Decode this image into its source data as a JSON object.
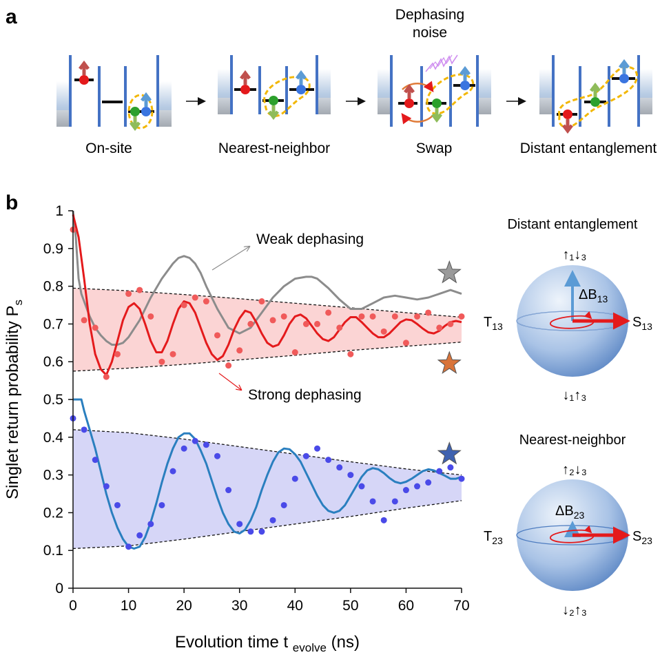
{
  "panel_a": {
    "label": "a",
    "stages": [
      "On-site",
      "Nearest-neighbor",
      "Swap",
      "Distant entanglement"
    ],
    "noise_label_line1": "Dephasing",
    "noise_label_line2": "noise",
    "arrows": [
      "→",
      "→",
      "→"
    ]
  },
  "panel_b": {
    "label": "b",
    "annotations": {
      "weak": "Weak dephasing",
      "strong": "Strong dephasing"
    },
    "spheres": [
      {
        "title": "Distant entanglement",
        "top_label": "↑₁↓₃",
        "bottom_label": "↓₁↑₃",
        "left_label": "T",
        "left_sub": "13",
        "right_label": "S",
        "right_sub": "13",
        "field_label": "ΔB",
        "field_sub": "13",
        "field_strength": "large"
      },
      {
        "title": "Nearest-neighbor",
        "top_label": "↑₂↓₃",
        "bottom_label": "↓₂↑₃",
        "left_label": "T",
        "left_sub": "23",
        "right_label": "S",
        "right_sub": "23",
        "field_label": "ΔB",
        "field_sub": "23",
        "field_strength": "small"
      }
    ]
  },
  "colors": {
    "red": "#e41a1c",
    "red_points": "#f05a5a",
    "red_band": "#fbd4d4",
    "gray": "#8c8c8c",
    "blue_line": "#2a7fbf",
    "blue_points": "#4a4ae8",
    "blue_band": "#d6d6f7",
    "gate": "#4472c4",
    "star_gray": "#9a9a9a",
    "star_orange": "#d9743a",
    "star_blue": "#3f62b0"
  },
  "chart_data": {
    "type": "line",
    "xlabel": "Evolution time t",
    "xlabel_sub": "evolve",
    "xlabel_unit": "(ns)",
    "ylabel": "Singlet return probability P",
    "ylabel_sub": "s",
    "xlim": [
      0,
      70
    ],
    "ylim": [
      0,
      1
    ],
    "xticks": [
      0,
      10,
      20,
      30,
      40,
      50,
      60,
      70
    ],
    "yticks": [
      0,
      0.1,
      0.2,
      0.3,
      0.4,
      0.5,
      0.6,
      0.7,
      0.8,
      0.9,
      1
    ],
    "series": [
      {
        "kind": "line",
        "color_key": "gray",
        "x": [
          0,
          0.5,
          1,
          1.5,
          2,
          3,
          4,
          5,
          6,
          7,
          8,
          9,
          10,
          12,
          14,
          16,
          18,
          19,
          20,
          21,
          22,
          23,
          24,
          26,
          28,
          30,
          32,
          34,
          36,
          38,
          40,
          42,
          43,
          44,
          46,
          48,
          50,
          52,
          54,
          56,
          58,
          60,
          62,
          64,
          66,
          68,
          70
        ],
        "y": [
          1.0,
          0.93,
          0.82,
          0.78,
          0.76,
          0.72,
          0.69,
          0.67,
          0.655,
          0.645,
          0.645,
          0.65,
          0.665,
          0.71,
          0.77,
          0.82,
          0.86,
          0.875,
          0.88,
          0.875,
          0.86,
          0.835,
          0.8,
          0.74,
          0.69,
          0.675,
          0.69,
          0.73,
          0.77,
          0.8,
          0.82,
          0.825,
          0.825,
          0.82,
          0.795,
          0.765,
          0.74,
          0.74,
          0.755,
          0.77,
          0.775,
          0.77,
          0.765,
          0.77,
          0.78,
          0.79,
          0.78
        ]
      },
      {
        "kind": "line",
        "color_key": "red",
        "x": [
          0,
          1,
          2,
          3,
          4,
          5,
          6,
          7,
          8,
          9,
          10,
          11,
          12,
          13,
          14,
          15,
          16,
          17,
          18,
          19,
          20,
          21,
          22,
          23,
          24,
          25,
          26,
          27,
          28,
          29,
          30,
          31,
          32,
          33,
          34,
          35,
          36,
          37,
          38,
          39,
          40,
          41,
          42,
          43,
          44,
          45,
          46,
          47,
          48,
          49,
          50,
          51,
          52,
          53,
          54,
          55,
          56,
          57,
          58,
          59,
          60,
          61,
          62,
          63,
          64,
          65,
          66,
          67,
          68,
          69,
          70
        ],
        "y": [
          0.99,
          0.93,
          0.82,
          0.7,
          0.62,
          0.58,
          0.565,
          0.6,
          0.655,
          0.71,
          0.745,
          0.755,
          0.74,
          0.7,
          0.655,
          0.625,
          0.625,
          0.655,
          0.7,
          0.74,
          0.76,
          0.755,
          0.73,
          0.69,
          0.65,
          0.62,
          0.605,
          0.615,
          0.645,
          0.685,
          0.715,
          0.735,
          0.73,
          0.705,
          0.675,
          0.65,
          0.64,
          0.645,
          0.67,
          0.7,
          0.72,
          0.725,
          0.715,
          0.695,
          0.675,
          0.66,
          0.655,
          0.665,
          0.685,
          0.705,
          0.718,
          0.718,
          0.705,
          0.69,
          0.675,
          0.665,
          0.665,
          0.675,
          0.69,
          0.705,
          0.712,
          0.71,
          0.7,
          0.688,
          0.678,
          0.675,
          0.682,
          0.695,
          0.705,
          0.708,
          0.705
        ]
      },
      {
        "kind": "points",
        "color_key": "red_points",
        "x": [
          0,
          2,
          4,
          6,
          8,
          10,
          12,
          14,
          16,
          18,
          20,
          22,
          24,
          26,
          28,
          30,
          32,
          34,
          36,
          38,
          40,
          42,
          44,
          46,
          48,
          50,
          52,
          54,
          56,
          58,
          60,
          62,
          64,
          66,
          68,
          70
        ],
        "y": [
          0.95,
          0.71,
          0.69,
          0.56,
          0.62,
          0.78,
          0.79,
          0.72,
          0.6,
          0.62,
          0.75,
          0.77,
          0.76,
          0.67,
          0.59,
          0.63,
          0.7,
          0.76,
          0.71,
          0.72,
          0.625,
          0.7,
          0.7,
          0.73,
          0.69,
          0.62,
          0.72,
          0.72,
          0.68,
          0.72,
          0.65,
          0.72,
          0.73,
          0.69,
          0.7,
          0.72
        ]
      },
      {
        "kind": "line",
        "color_key": "blue_line",
        "x": [
          0,
          0.5,
          1,
          1.5,
          2,
          3,
          4,
          5,
          6,
          7,
          8,
          9,
          10,
          11,
          12,
          13,
          14,
          15,
          16,
          17,
          18,
          19,
          20,
          21,
          22,
          23,
          24,
          25,
          26,
          27,
          28,
          29,
          30,
          31,
          32,
          33,
          34,
          35,
          36,
          37,
          38,
          39,
          40,
          41,
          42,
          43,
          44,
          45,
          46,
          47,
          48,
          49,
          50,
          51,
          52,
          53,
          54,
          55,
          56,
          57,
          58,
          59,
          60,
          61,
          62,
          63,
          64,
          65,
          66,
          67,
          68,
          69,
          70
        ],
        "y": [
          0.5,
          0.5,
          0.5,
          0.5,
          0.47,
          0.42,
          0.37,
          0.31,
          0.25,
          0.2,
          0.16,
          0.13,
          0.11,
          0.105,
          0.11,
          0.135,
          0.175,
          0.225,
          0.28,
          0.33,
          0.37,
          0.4,
          0.41,
          0.41,
          0.395,
          0.365,
          0.33,
          0.285,
          0.24,
          0.2,
          0.17,
          0.15,
          0.145,
          0.155,
          0.18,
          0.215,
          0.26,
          0.3,
          0.335,
          0.36,
          0.37,
          0.368,
          0.355,
          0.335,
          0.305,
          0.275,
          0.245,
          0.22,
          0.205,
          0.2,
          0.205,
          0.22,
          0.245,
          0.27,
          0.295,
          0.312,
          0.318,
          0.315,
          0.305,
          0.292,
          0.282,
          0.278,
          0.282,
          0.29,
          0.3,
          0.31,
          0.315,
          0.312,
          0.305,
          0.298,
          0.29,
          0.29,
          0.295
        ]
      },
      {
        "kind": "points",
        "color_key": "blue_points",
        "x": [
          0,
          2,
          4,
          6,
          8,
          10,
          12,
          14,
          16,
          18,
          20,
          22,
          24,
          26,
          28,
          30,
          32,
          34,
          36,
          38,
          40,
          42,
          44,
          46,
          48,
          50,
          52,
          54,
          56,
          58,
          60,
          62,
          64,
          66,
          68,
          70
        ],
        "y": [
          0.45,
          0.42,
          0.34,
          0.27,
          0.22,
          0.11,
          0.14,
          0.17,
          0.22,
          0.31,
          0.37,
          0.39,
          0.38,
          0.35,
          0.26,
          0.17,
          0.15,
          0.15,
          0.18,
          0.22,
          0.29,
          0.35,
          0.37,
          0.34,
          0.32,
          0.3,
          0.27,
          0.23,
          0.18,
          0.23,
          0.26,
          0.27,
          0.28,
          0.31,
          0.32,
          0.29
        ]
      }
    ],
    "bands": [
      {
        "fill_key": "red_band",
        "x": [
          0,
          10,
          20,
          30,
          40,
          50,
          60,
          70
        ],
        "upper": [
          0.795,
          0.788,
          0.778,
          0.767,
          0.755,
          0.743,
          0.73,
          0.718
        ],
        "lower": [
          0.575,
          0.583,
          0.593,
          0.605,
          0.617,
          0.63,
          0.641,
          0.652
        ]
      },
      {
        "fill_key": "blue_band",
        "x": [
          0,
          10,
          20,
          30,
          40,
          50,
          60,
          70
        ],
        "upper": [
          0.42,
          0.412,
          0.395,
          0.375,
          0.355,
          0.335,
          0.316,
          0.3
        ],
        "lower": [
          0.105,
          0.112,
          0.13,
          0.15,
          0.17,
          0.19,
          0.212,
          0.232
        ]
      }
    ],
    "markers": [
      {
        "shape": "star",
        "x": 67.8,
        "y": 0.835,
        "color_key": "star_gray"
      },
      {
        "shape": "star",
        "x": 67.8,
        "y": 0.595,
        "color_key": "star_orange"
      },
      {
        "shape": "star",
        "x": 67.8,
        "y": 0.355,
        "color_key": "star_blue"
      }
    ]
  }
}
